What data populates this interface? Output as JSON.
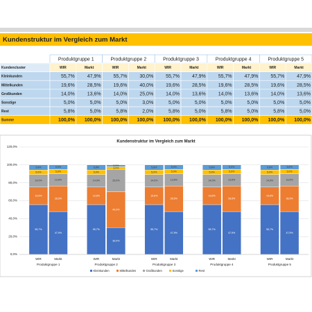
{
  "table": {
    "title": "Kundenstruktur im Vergleich zum Markt",
    "groups": [
      "Produktgruppe 1",
      "Produktgruppe 2",
      "Produktgruppe 3",
      "Produktgruppe 4",
      "Produktgruppe 5"
    ],
    "subheader": {
      "label": "Kundencluster",
      "cells": [
        "WIR",
        "Markt",
        "WIR",
        "Markt",
        "WIR",
        "Markt",
        "WIR",
        "Markt",
        "WIR",
        "Markt"
      ]
    },
    "rows": [
      {
        "label": "Kleinkunden",
        "cells": [
          "55,7%",
          "47,9%",
          "55,7%",
          "30,0%",
          "55,7%",
          "47,9%",
          "55,7%",
          "47,9%",
          "55,7%",
          "47,9%"
        ]
      },
      {
        "label": "Mittelkunden",
        "cells": [
          "19,6%",
          "28,5%",
          "19,6%",
          "40,0%",
          "19,6%",
          "28,5%",
          "19,6%",
          "28,5%",
          "19,6%",
          "28,5%"
        ]
      },
      {
        "label": "Großkunden",
        "cells": [
          "14,0%",
          "13,6%",
          "14,0%",
          "25,0%",
          "14,0%",
          "13,6%",
          "14,0%",
          "13,6%",
          "14,0%",
          "13,6%"
        ]
      },
      {
        "label": "Sonstige",
        "cells": [
          "5,0%",
          "5,0%",
          "5,0%",
          "3,0%",
          "5,0%",
          "5,0%",
          "5,0%",
          "5,0%",
          "5,0%",
          "5,0%"
        ]
      },
      {
        "label": "Rest",
        "cells": [
          "5,8%",
          "5,0%",
          "5,8%",
          "2,0%",
          "5,8%",
          "5,0%",
          "5,8%",
          "5,0%",
          "5,8%",
          "5,0%"
        ]
      },
      {
        "label": "Summe",
        "cells": [
          "100,0%",
          "100,0%",
          "100,0%",
          "100,0%",
          "100,0%",
          "100,0%",
          "100,0%",
          "100,0%",
          "100,0%",
          "100,0%"
        ]
      }
    ]
  },
  "chart_data": {
    "type": "stacked-bar",
    "title": "Kundenstruktur im Vergleich zum Markt",
    "categories": [
      "WIR",
      "Markt",
      "WIR",
      "Markt",
      "WIR",
      "Markt",
      "WIR",
      "Markt",
      "WIR",
      "Markt"
    ],
    "groups": [
      "Produktgruppe 1",
      "Produktgruppe 2",
      "Produktgruppe 3",
      "Produktgruppe 4",
      "Produktgruppe 5"
    ],
    "ylim": [
      0,
      120
    ],
    "yticks": [
      {
        "value": 0,
        "label": "0,0%"
      },
      {
        "value": 20,
        "label": "20,0%"
      },
      {
        "value": 40,
        "label": "40,0%"
      },
      {
        "value": 60,
        "label": "60,0%"
      },
      {
        "value": 80,
        "label": "80,0%"
      },
      {
        "value": 100,
        "label": "100,0%"
      },
      {
        "value": 120,
        "label": "120,0%"
      }
    ],
    "grid": true,
    "legend": "bottom",
    "series": [
      {
        "name": "Kleinkunden",
        "color": "#4472c4",
        "values": [
          55.7,
          47.9,
          55.7,
          30.0,
          55.7,
          47.9,
          55.7,
          47.9,
          55.7,
          47.9
        ],
        "value_labels": [
          "55,7%",
          "47,9%",
          "55,7%",
          "30,0%",
          "55,7%",
          "47,9%",
          "55,7%",
          "47,9%",
          "55,7%",
          "47,9%"
        ]
      },
      {
        "name": "Mittelkunden",
        "color": "#ed7d31",
        "values": [
          19.6,
          28.5,
          19.6,
          40.0,
          19.6,
          28.5,
          19.6,
          28.5,
          19.6,
          28.5
        ],
        "value_labels": [
          "19,6%",
          "28,5%",
          "19,6%",
          "40,0%",
          "19,6%",
          "28,5%",
          "19,6%",
          "28,5%",
          "19,6%",
          "28,5%"
        ]
      },
      {
        "name": "Großkunden",
        "color": "#a5a5a5",
        "values": [
          14.0,
          13.6,
          14.0,
          25.0,
          14.0,
          13.6,
          14.0,
          13.6,
          14.0,
          13.6
        ],
        "value_labels": [
          "14,0%",
          "13,6%",
          "14,0%",
          "25,0%",
          "14,0%",
          "13,6%",
          "14,0%",
          "13,6%",
          "14,0%",
          "13,6%"
        ]
      },
      {
        "name": "Sonstige",
        "color": "#ffc000",
        "values": [
          5.0,
          5.0,
          5.0,
          3.0,
          5.0,
          5.0,
          5.0,
          5.0,
          5.0,
          5.0
        ],
        "value_labels": [
          "5,0%",
          "5,0%",
          "5,0%",
          "3,0%",
          "5,0%",
          "5,0%",
          "5,0%",
          "5,0%",
          "5,0%",
          "5,0%"
        ]
      },
      {
        "name": "Rest",
        "color": "#5b9bd5",
        "values": [
          5.8,
          5.0,
          5.8,
          2.0,
          5.8,
          5.0,
          5.8,
          5.0,
          5.8,
          5.0
        ],
        "value_labels": [
          "5,8%",
          "5,0%",
          "5,8%",
          "2,0%",
          "5,8%",
          "5,0%",
          "5,8%",
          "5,0%",
          "5,8%",
          "5,0%"
        ]
      }
    ]
  }
}
